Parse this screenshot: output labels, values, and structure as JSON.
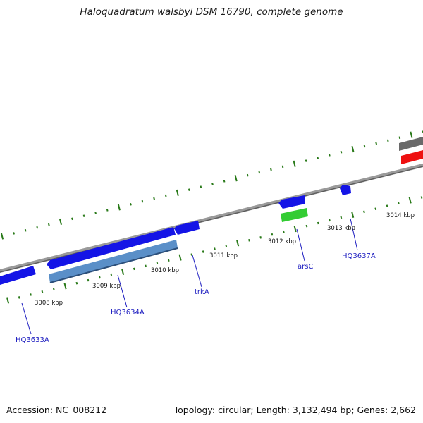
{
  "title": "Haloquadratum walsbyi DSM 16790, complete genome",
  "footer": {
    "accession": "Accession: NC_008212",
    "topology": "Topology: circular; Length: 3,132,494 bp; Genes: 2,662"
  },
  "scale_labels": [
    "3008 kbp",
    "3009 kbp",
    "3010 kbp",
    "3011 kbp",
    "3012 kbp",
    "3013 kbp",
    "3014 kbp"
  ],
  "gene_labels": [
    "HQ3633A",
    "HQ3634A",
    "trkA",
    "arsC",
    "HQ3637A"
  ],
  "colors": {
    "backbone": "#8c8c8c",
    "forward_gene": "#1414e6",
    "reverse_gene": "#1414e6",
    "cds_light": "#5a8fc8",
    "rna_green": "#33cc33",
    "red_feature": "#ee1111",
    "grey_feature": "#6a6a6a",
    "tick": "#2a7a1a",
    "label": "#1c1cc0"
  }
}
